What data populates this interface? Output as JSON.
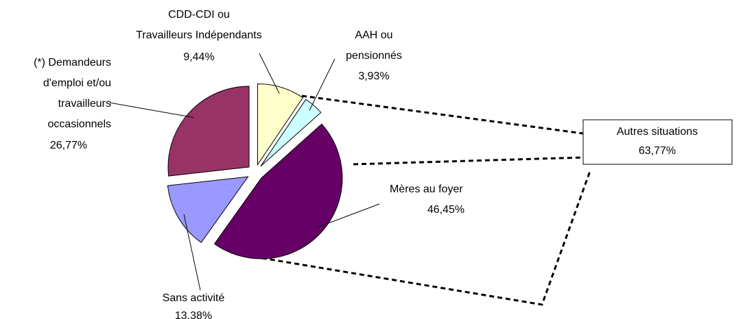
{
  "chart_data": {
    "type": "pie",
    "categories": [
      [
        "CDD-CDI ou",
        "Travailleurs  Indépendants"
      ],
      [
        "AAH ou",
        "pensionnés"
      ],
      [
        "Mères au foyer"
      ],
      [
        "Sans activité"
      ],
      [
        "(*) Demandeurs",
        "d'emploi et/ou",
        "travailleurs",
        "occasionnels"
      ]
    ],
    "values": [
      9.44,
      3.93,
      46.45,
      13.38,
      26.77
    ],
    "value_labels": [
      "9,44%",
      "3,93%",
      "46,45%",
      "13,38%",
      "26,77%"
    ],
    "colors": [
      "#ffffcc",
      "#ccffff",
      "#660066",
      "#9999ff",
      "#993366"
    ],
    "annotation": [
      "Autres situations",
      "63,77%"
    ]
  }
}
